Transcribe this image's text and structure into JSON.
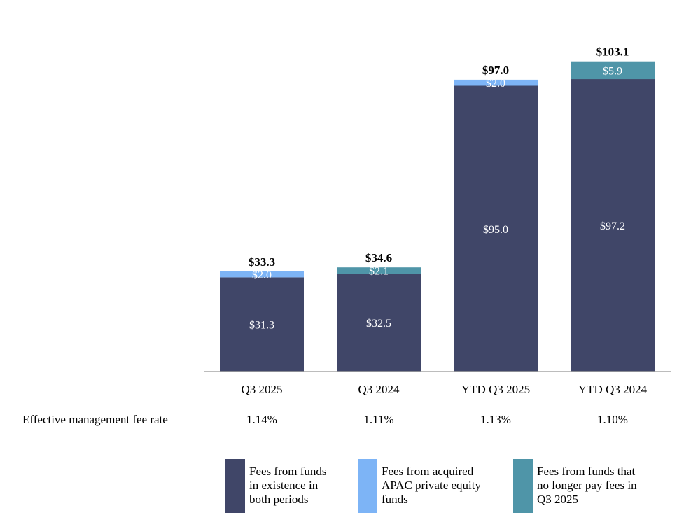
{
  "chart_data": {
    "type": "bar",
    "stacked": true,
    "categories": [
      "Q3 2025",
      "Q3 2024",
      "YTD Q3 2025",
      "YTD Q3 2024"
    ],
    "series": [
      {
        "name": "Fees from funds in existence in both periods",
        "color": "#404668",
        "values": [
          31.3,
          32.5,
          95.0,
          97.2
        ],
        "labels": [
          "$31.3",
          "$32.5",
          "$95.0",
          "$97.2"
        ]
      },
      {
        "name": "Fees from acquired APAC private equity funds",
        "color": "#7db4f6",
        "values": [
          2.0,
          null,
          2.0,
          null
        ],
        "labels": [
          "$2.0",
          null,
          "$2.0",
          null
        ]
      },
      {
        "name": "Fees from funds that no longer pay fees in Q3 2025",
        "color": "#4f95a8",
        "values": [
          null,
          2.1,
          null,
          5.9
        ],
        "labels": [
          null,
          "$2.1",
          null,
          "$5.9"
        ]
      }
    ],
    "totals": [
      33.3,
      34.6,
      97.0,
      103.1
    ],
    "total_labels": [
      "$33.3",
      "$34.6",
      "$97.0",
      "$103.1"
    ],
    "ylim": [
      0,
      110
    ],
    "grid": false,
    "title": "",
    "xlabel": "",
    "ylabel": ""
  },
  "fee_rate": {
    "label": "Effective management fee rate",
    "values": [
      "1.14%",
      "1.11%",
      "1.13%",
      "1.10%"
    ]
  },
  "legend": [
    {
      "lines": [
        "Fees from funds",
        "in existence in",
        "both periods"
      ],
      "color": "#404668"
    },
    {
      "lines": [
        "Fees from acquired",
        "APAC private equity",
        "funds"
      ],
      "color": "#7db4f6"
    },
    {
      "lines": [
        "Fees from funds that",
        "no longer pay fees in",
        "Q3 2025"
      ],
      "color": "#4f95a8"
    }
  ]
}
